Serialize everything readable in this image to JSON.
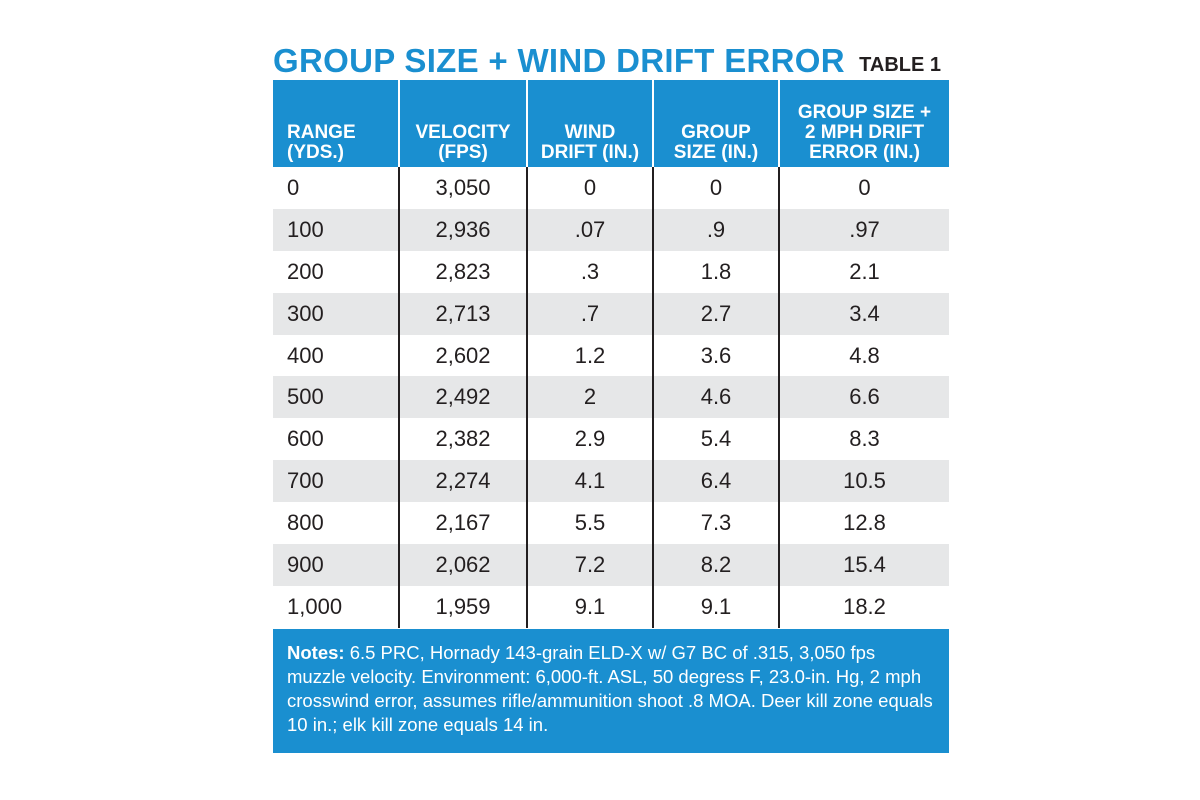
{
  "title": "GROUP SIZE + WIND DRIFT ERROR",
  "table_label": "TABLE 1",
  "columns": [
    [
      "RANGE",
      "(YDS.)"
    ],
    [
      "VELOCITY",
      "(FPS)"
    ],
    [
      "WIND",
      "DRIFT (IN.)"
    ],
    [
      "GROUP",
      "SIZE (IN.)"
    ],
    [
      "GROUP SIZE +",
      "2 MPH DRIFT",
      "ERROR (IN.)"
    ]
  ],
  "rows": [
    [
      "0",
      "3,050",
      "0",
      "0",
      "0"
    ],
    [
      "100",
      "2,936",
      ".07",
      ".9",
      ".97"
    ],
    [
      "200",
      "2,823",
      ".3",
      "1.8",
      "2.1"
    ],
    [
      "300",
      "2,713",
      ".7",
      "2.7",
      "3.4"
    ],
    [
      "400",
      "2,602",
      "1.2",
      "3.6",
      "4.8"
    ],
    [
      "500",
      "2,492",
      "2",
      "4.6",
      "6.6"
    ],
    [
      "600",
      "2,382",
      "2.9",
      "5.4",
      "8.3"
    ],
    [
      "700",
      "2,274",
      "4.1",
      "6.4",
      "10.5"
    ],
    [
      "800",
      "2,167",
      "5.5",
      "7.3",
      "12.8"
    ],
    [
      "900",
      "2,062",
      "7.2",
      "8.2",
      "15.4"
    ],
    [
      "1,000",
      "1,959",
      "9.1",
      "9.1",
      "18.2"
    ]
  ],
  "notes": {
    "label": "Notes:",
    "text": " 6.5 PRC, Hornady 143-grain ELD-X w/ G7 BC of .315, 3,050 fps muzzle velocity. Environment: 6,000-ft. ASL, 50 degress F, 23.0-in. Hg, 2 mph crosswind error, assumes rifle/ammunition shoot .8 MOA. Deer kill zone equals 10 in.; elk kill zone equals 14 in."
  },
  "colors": {
    "accent": "#1a8fd0",
    "stripe": "#e6e7e8",
    "text": "#231f20"
  }
}
